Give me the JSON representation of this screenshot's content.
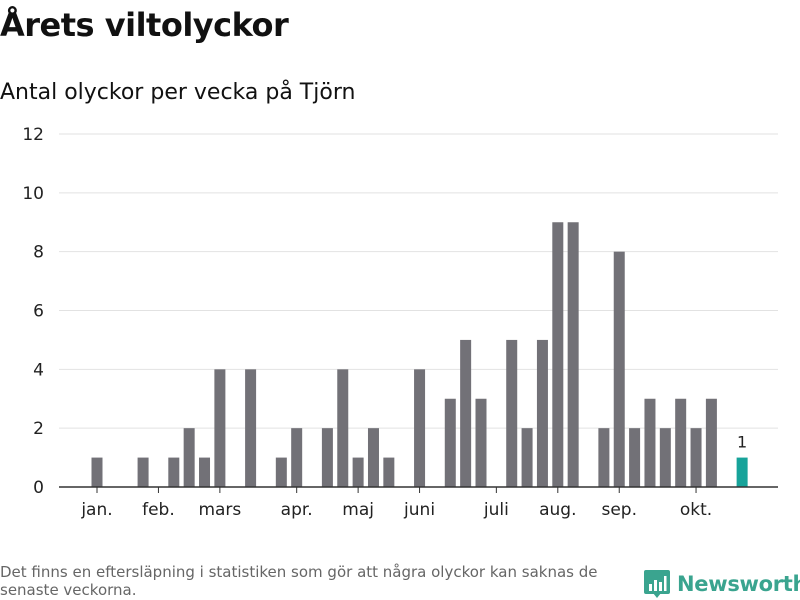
{
  "title": "Årets viltolyckor",
  "subtitle": "Antal olyckor per vecka på Tjörn",
  "footnote": "Det finns en eftersläpning i statistiken som gör att några olyckor kan saknas de senaste veckorna.",
  "brand": {
    "name": "Newsworthy",
    "icon": "newsworthy-logo-icon",
    "color": "#3aa48f"
  },
  "colors": {
    "bar": "#727177",
    "highlight": "#17a39a",
    "grid": "#e2e2e2",
    "axis": "#333333"
  },
  "chart_data": {
    "type": "bar",
    "title": "Antal olyckor per vecka på Tjörn",
    "xlabel": "",
    "ylabel": "",
    "ylim": [
      0,
      12
    ],
    "yticks": [
      0,
      2,
      4,
      6,
      8,
      10,
      12
    ],
    "grid": true,
    "x": [
      2,
      3,
      4,
      5,
      6,
      7,
      8,
      9,
      10,
      11,
      12,
      13,
      14,
      15,
      16,
      17,
      18,
      19,
      20,
      21,
      22,
      23,
      24,
      25,
      26,
      27,
      28,
      29,
      30,
      31,
      32,
      33,
      34,
      35,
      36,
      37,
      38,
      39,
      40,
      41,
      42,
      43,
      44
    ],
    "values": [
      1,
      0,
      0,
      1,
      0,
      1,
      2,
      1,
      4,
      0,
      4,
      0,
      1,
      2,
      0,
      2,
      4,
      1,
      2,
      1,
      0,
      4,
      0,
      3,
      5,
      3,
      0,
      5,
      2,
      5,
      9,
      9,
      0,
      2,
      8,
      2,
      3,
      2,
      3,
      2,
      3,
      0,
      1
    ],
    "highlight_index": 42,
    "data_labels": [
      {
        "index": 42,
        "text": "1"
      }
    ],
    "xtick_labels": [
      {
        "label": "jan.",
        "x": 2
      },
      {
        "label": "feb.",
        "x": 6
      },
      {
        "label": "mars",
        "x": 10
      },
      {
        "label": "apr.",
        "x": 15
      },
      {
        "label": "maj",
        "x": 19
      },
      {
        "label": "juni",
        "x": 23
      },
      {
        "label": "juli",
        "x": 28
      },
      {
        "label": "aug.",
        "x": 32
      },
      {
        "label": "sep.",
        "x": 36
      },
      {
        "label": "okt.",
        "x": 41
      }
    ]
  }
}
